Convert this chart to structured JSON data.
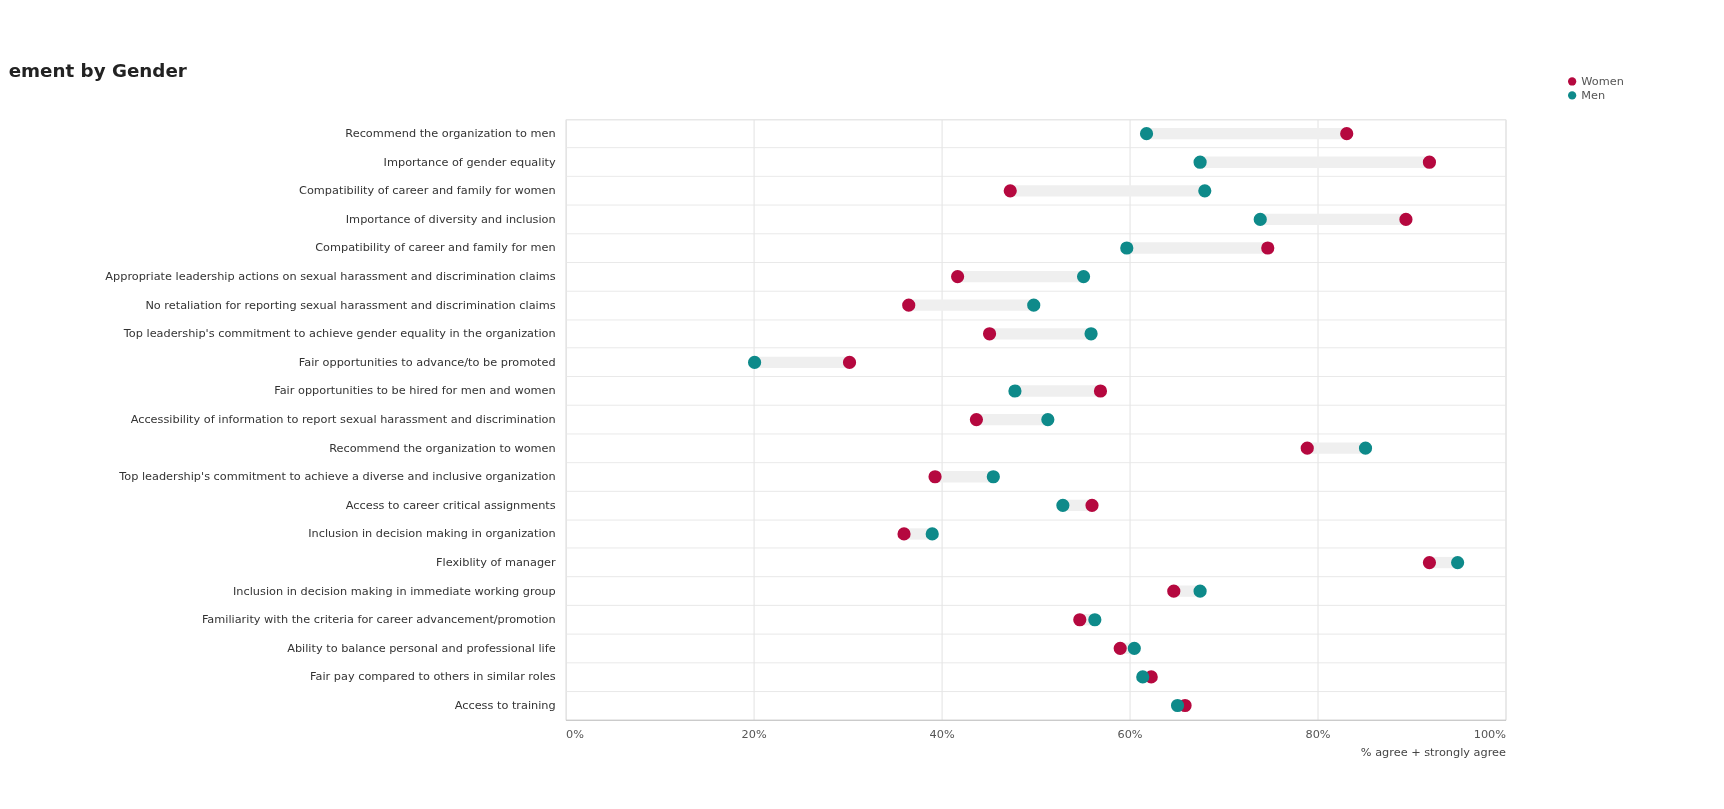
{
  "chart_data": {
    "type": "scatter",
    "orientation": "horizontal",
    "title": "ement by Gender",
    "xlabel": "% agree + strongly agree",
    "categories": [
      "Recommend the organization to men",
      "Importance of gender equality",
      "Compatibility of career and family for women",
      "Importance of diversity and inclusion",
      "Compatibility of career and family for men",
      "Appropriate leadership actions on sexual harassment and discrimination claims",
      "No retaliation for reporting sexual harassment and discrimination claims",
      "Top leadership's commitment to achieve gender equality in the organization",
      "Fair opportunities to advance/to be promoted",
      "Fair opportunities to be hired for men and women",
      "Accessibility of information to report sexual harassment and discrimination",
      "Recommend the organization to women",
      "Top leadership's commitment to achieve a diverse and inclusive organization",
      "Access to career critical assignments",
      "Inclusion in decision making in organization",
      "Flexiblity of manager",
      "Inclusion in decision making in immediate working group",
      "Familiarity with the criteria for career advancement/promotion",
      "Ability to balance personal and professional life",
      "Fair pay compared to others in similar roles",
      "Access to training"
    ],
    "series": [
      {
        "name": "Women",
        "color": "#b5083f",
        "values": [
          83.1,
          91.9,
          47.3,
          89.4,
          74.7,
          41.7,
          36.5,
          45.1,
          30.2,
          56.9,
          43.7,
          78.9,
          39.3,
          56.0,
          36.0,
          91.9,
          64.7,
          54.7,
          59.0,
          62.3,
          65.9
        ]
      },
      {
        "name": "Men",
        "color": "#0e8a8a",
        "values": [
          61.8,
          67.5,
          68.0,
          73.9,
          59.7,
          55.1,
          49.8,
          55.9,
          20.1,
          47.8,
          51.3,
          85.1,
          45.5,
          52.9,
          39.0,
          94.9,
          67.5,
          56.3,
          60.5,
          61.4,
          65.1
        ]
      }
    ],
    "xlim": [
      0,
      100
    ],
    "xticks": [
      {
        "value": 0,
        "label": "0%"
      },
      {
        "value": 20,
        "label": "20%"
      },
      {
        "value": 40,
        "label": "40%"
      },
      {
        "value": 60,
        "label": "60%"
      },
      {
        "value": 80,
        "label": "80%"
      },
      {
        "value": 100,
        "label": "100%"
      }
    ],
    "grid": true,
    "legend": "top right",
    "marker": "circle"
  }
}
